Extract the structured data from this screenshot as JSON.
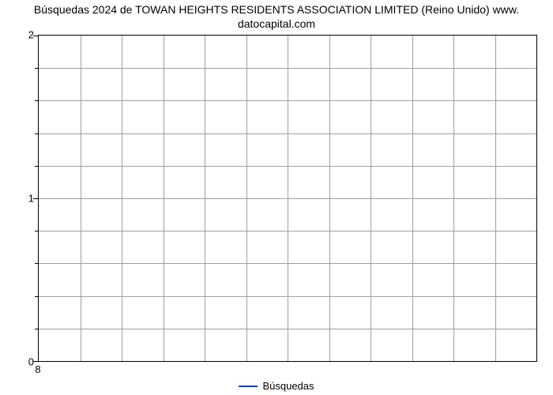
{
  "chart": {
    "type": "line",
    "title_line1": "Búsquedas 2024 de TOWAN HEIGHTS RESIDENTS ASSOCIATION LIMITED (Reino Unido) www.",
    "title_line2": "datocapital.com",
    "title_fontsize": 14,
    "title_color": "#000000",
    "background_color": "#ffffff",
    "plot_border_color": "#000000",
    "grid_color": "#9f9f9f",
    "grid_width": 1,
    "xlim": [
      8,
      8
    ],
    "ylim": [
      0,
      2
    ],
    "yticks": [
      0,
      1,
      2
    ],
    "xticks": [
      8
    ],
    "minor_y_divisions": 5,
    "x_columns": 12,
    "series": [
      {
        "name": "Búsquedas",
        "x": [
          8
        ],
        "y": [
          0
        ],
        "color": "#1a3bcc",
        "line_width": 2
      }
    ],
    "legend": {
      "position": "bottom-center",
      "label": "Búsquedas",
      "color": "#1a3bcc",
      "fontsize": 13
    },
    "tick_fontsize": 13,
    "tick_color": "#000000"
  }
}
